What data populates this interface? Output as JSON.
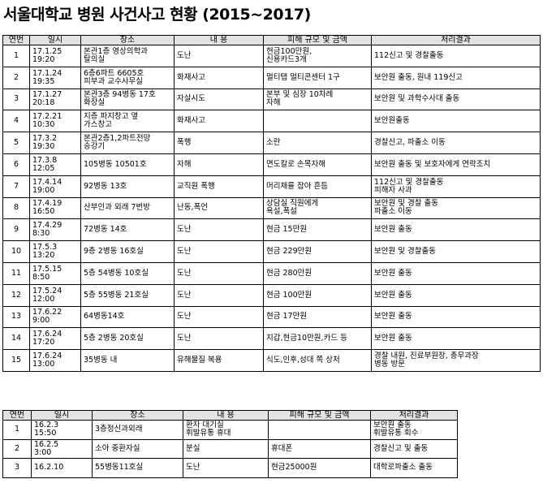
{
  "title": "서울대학교 병원 사건사고 현황 (2015~2017)",
  "table1": {
    "headers": [
      "연번",
      "일시",
      "장소",
      "내 용",
      "피해 규모 및 금액",
      "처리결과"
    ],
    "rows": [
      {
        "no": "1",
        "date": "17.1.25\n19:20",
        "place": "본관1층 영상의학과\n탈의실",
        "content": "도난",
        "damage": "현금100만원,\n신용카드3개",
        "result": "112신고 및 경찰출동"
      },
      {
        "no": "2",
        "date": "17.1.24\n19:35",
        "place": "6층6파트 6605호\n피부과 교수사무실",
        "content": "화재사고",
        "damage": "멀티탭 멀티콘센터 1구",
        "result": "보안원 출동, 원내 119신고"
      },
      {
        "no": "3",
        "date": "17.1.27\n20:18",
        "place": "본관3층 94병동 17호\n화장실",
        "content": "자살시도",
        "damage": "본부 및 심장 10차례\n자해",
        "result": "보안원 및 과학수사대 출동"
      },
      {
        "no": "4",
        "date": "17.2.21\n10:30",
        "place": "지층 파지창고 옆\n가스창고",
        "content": "화재사고",
        "damage": "",
        "result": "보안원출동"
      },
      {
        "no": "5",
        "date": "17.3.2\n19:30",
        "place": "본관2층1,2파트전망\n승강기",
        "content": "폭행",
        "damage": "소란",
        "result": "경찰신고, 파출소 이동"
      },
      {
        "no": "6",
        "date": "17.3.8\n12:05",
        "place": "105병동 10501호",
        "content": "자해",
        "damage": "면도칼로 손목자해",
        "result": "보안원 출동 및 보호자에게 연락조치"
      },
      {
        "no": "7",
        "date": "17.4.14\n19:00",
        "place": "92병동 13호",
        "content": "교직원 폭행",
        "damage": "머리채를 잡아 흔듬",
        "result": "112신고 및 경찰출동\n피해자 사과"
      },
      {
        "no": "8",
        "date": "17.4.19\n16:50",
        "place": "산부인과 외래 7번방",
        "content": "난동,폭언",
        "damage": "상담실 직원에게\n욕설,폭설",
        "result": "보안원 및 경찰 출동\n파출소 이동"
      },
      {
        "no": "9",
        "date": "17.4.29\n8:30",
        "place": "72병동 14호",
        "content": "도난",
        "damage": "현금 15만원",
        "result": "보안원 출동"
      },
      {
        "no": "10",
        "date": "17.5.3\n13:20",
        "place": "9층 2병동 16호실",
        "content": "도난",
        "damage": "현금 229만원",
        "result": "보안원 및 경찰출동"
      },
      {
        "no": "11",
        "date": "17.5.15\n8:50",
        "place": "5층 54병동 10호실",
        "content": "도난",
        "damage": "현금 280만원",
        "result": "보안원 출동"
      },
      {
        "no": "12",
        "date": "17.5.24\n12:00",
        "place": "5층 55병동 21호실",
        "content": "도난",
        "damage": "현금 100만원",
        "result": "보안원 출동"
      },
      {
        "no": "13",
        "date": "17.6.22\n9:00",
        "place": "64병동14호",
        "content": "도난",
        "damage": "현금 17만원",
        "result": "보안원 출동"
      },
      {
        "no": "14",
        "date": "17.6.24\n17:20",
        "place": "5층 2병동 20호실",
        "content": "도난",
        "damage": "지갑,현금10만원,카드 등",
        "result": "보안원 출동"
      },
      {
        "no": "15",
        "date": "17.6.24\n13:00",
        "place": "35병동 내",
        "content": "유해물질 복용",
        "damage": "식도,인후,성대 쪽 상처",
        "result": "경찰 내원, 진료부원장, 총무과장\n병동 방문"
      }
    ]
  },
  "table2": {
    "headers": [
      "연번",
      "일시",
      "장소",
      "내 용",
      "피해 규모 및 금액",
      "처리결과"
    ],
    "rows": [
      {
        "no": "1",
        "date": "16.2.3\n15:50",
        "place": "3층정신과외래",
        "content": "환자 대기실\n휘발유통 휴대",
        "damage": "",
        "result": "보안원 출동\n휘발유통 회수"
      },
      {
        "no": "2",
        "date": "16.2.5\n3:00",
        "place": "소아 중환자실",
        "content": "분실",
        "damage": "휴대폰",
        "result": "경찰신고 및 출동"
      },
      {
        "no": "3",
        "date": "16.2.10",
        "place": "55병동11호실",
        "content": "도난",
        "damage": "현금25000원",
        "result": "대학로파출소 출동"
      }
    ]
  }
}
